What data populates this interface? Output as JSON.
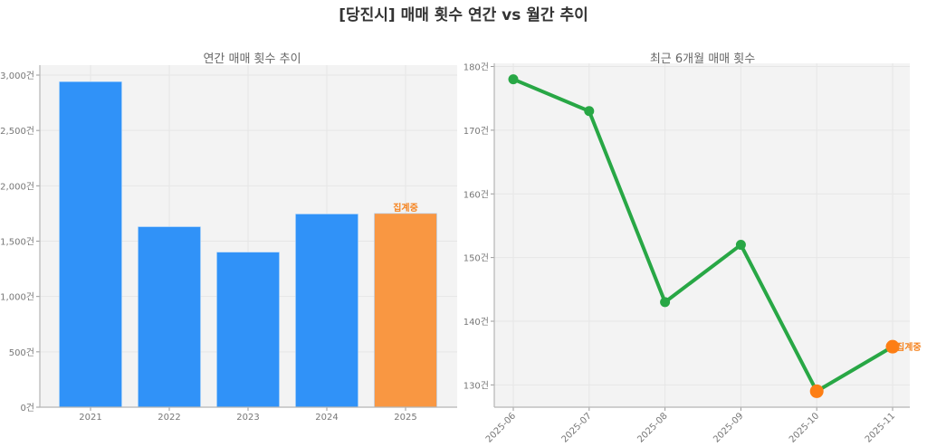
{
  "suptitle": "[당진시] 매매 횟수 연간 vs 월간 추이",
  "chart_data": [
    {
      "type": "bar",
      "title": "연간 매매 횟수 추이",
      "xlabel": "",
      "ylabel": "",
      "categories": [
        "2021",
        "2022",
        "2023",
        "2024",
        "2025"
      ],
      "values": [
        2940,
        1630,
        1400,
        1745,
        1750
      ],
      "colors": [
        "#3092f8",
        "#3092f8",
        "#3092f8",
        "#3092f8",
        "#f99742"
      ],
      "annotations": [
        {
          "x": "2025",
          "text": "집계중",
          "color": "#f5831f"
        }
      ],
      "yticks": [
        0,
        500,
        1000,
        1500,
        2000,
        2500,
        3000
      ],
      "ytick_labels": [
        "0건",
        "500건",
        "1,000건",
        "1,500건",
        "2,000건",
        "2,500건",
        "3,000건"
      ],
      "ylim": [
        0,
        3090
      ],
      "grid": true
    },
    {
      "type": "line",
      "title": "최근 6개월 매매 횟수",
      "xlabel": "",
      "ylabel": "",
      "x": [
        "2025-06",
        "2025-07",
        "2025-08",
        "2025-09",
        "2025-10",
        "2025-11"
      ],
      "values": [
        178,
        173,
        143,
        152,
        129,
        136
      ],
      "line_color": "#28a745",
      "highlight_points": [
        {
          "x": "2025-10",
          "color": "#fd7e14"
        },
        {
          "x": "2025-11",
          "color": "#fd7e14"
        }
      ],
      "annotations": [
        {
          "x": "2025-11",
          "text": "집계중",
          "color": "#f5831f"
        }
      ],
      "yticks": [
        130,
        140,
        150,
        160,
        170,
        180
      ],
      "ytick_labels": [
        "130건",
        "140건",
        "150건",
        "160건",
        "170건",
        "180건"
      ],
      "ylim": [
        126.5,
        180.5
      ],
      "grid": true
    }
  ]
}
